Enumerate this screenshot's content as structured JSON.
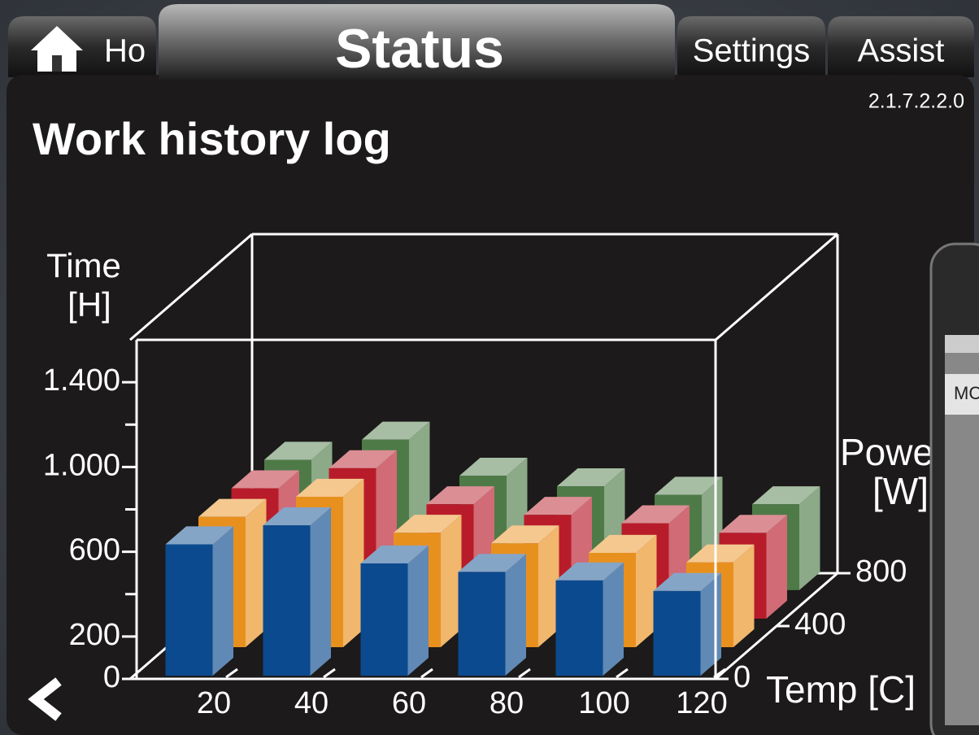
{
  "tabs": {
    "home": "Ho",
    "status": "Status",
    "settings": "Settings",
    "assist": "Assist"
  },
  "version": "2.1.7.2.2.0",
  "heading": "Work history log",
  "phone_text": "MC",
  "chart_data": {
    "type": "bar3d",
    "ylabel": [
      "Time",
      "[H]"
    ],
    "xlabel": "Temp [C]",
    "zlabel": [
      "Power",
      "[W]"
    ],
    "categories": [
      20,
      40,
      60,
      80,
      100,
      120
    ],
    "series": [
      {
        "color": "#0b4a8e",
        "values": [
          620,
          710,
          530,
          490,
          450,
          400
        ]
      },
      {
        "color": "#e8901e",
        "values": [
          615,
          710,
          540,
          490,
          445,
          400
        ]
      },
      {
        "color": "#b81c2a",
        "values": [
          615,
          710,
          540,
          490,
          450,
          405
        ]
      },
      {
        "color": "#4e7a48",
        "values": [
          615,
          710,
          540,
          490,
          450,
          405
        ]
      }
    ],
    "ylim": [
      0,
      1600
    ],
    "yticks": [
      0,
      200,
      600,
      {
        "value": 1000,
        "label": "1.000"
      },
      {
        "value": 1400,
        "label": "1.400"
      }
    ],
    "yminor": [
      400,
      800,
      1200
    ],
    "zlim": [
      0,
      800
    ],
    "zticks": [
      0,
      400,
      800
    ]
  }
}
